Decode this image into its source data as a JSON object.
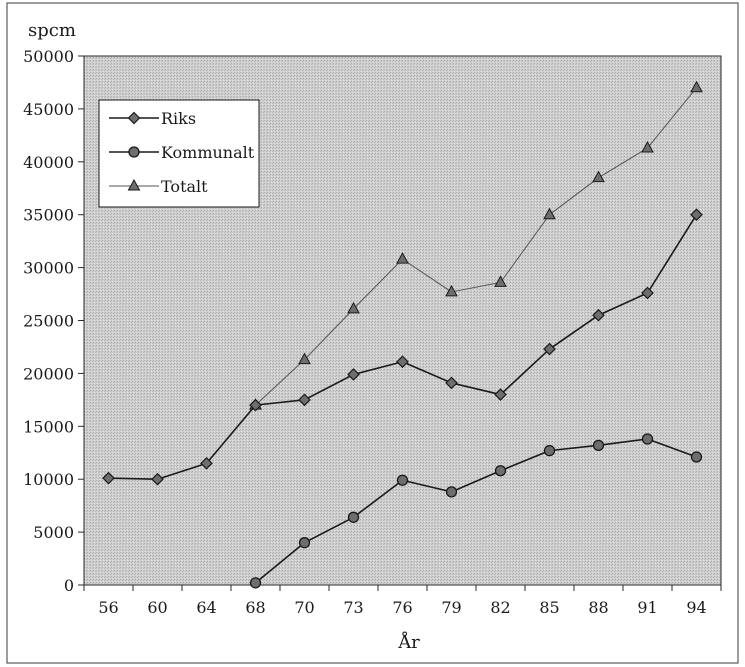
{
  "chart_data": {
    "type": "line",
    "title": "",
    "ylabel": "spcm",
    "xlabel": "År",
    "categories": [
      "56",
      "60",
      "64",
      "68",
      "70",
      "73",
      "76",
      "79",
      "82",
      "85",
      "88",
      "91",
      "94"
    ],
    "ylim": [
      0,
      50000
    ],
    "yticks": [
      "0",
      "5000",
      "10000",
      "15000",
      "20000",
      "25000",
      "30000",
      "35000",
      "40000",
      "45000",
      "50000"
    ],
    "grid": false,
    "legend_position": "top-left",
    "plot_background": "#c8c8c8",
    "series": [
      {
        "name": "Riks",
        "marker": "diamond",
        "line_style": "solid",
        "color": "#1a1a1a",
        "values": [
          10100,
          10000,
          11500,
          17000,
          17500,
          19900,
          21100,
          19100,
          18000,
          22300,
          25500,
          27600,
          35000
        ]
      },
      {
        "name": "Kommunalt",
        "marker": "circle",
        "line_style": "solid",
        "color": "#1a1a1a",
        "values": [
          null,
          null,
          null,
          200,
          4000,
          6400,
          9900,
          8800,
          10800,
          12700,
          13200,
          13800,
          12100
        ]
      },
      {
        "name": "Totalt",
        "marker": "triangle",
        "line_style": "thin",
        "color": "#555555",
        "values": [
          null,
          null,
          null,
          17000,
          21300,
          26100,
          30800,
          27700,
          28600,
          35000,
          38500,
          41300,
          47000
        ]
      }
    ]
  }
}
